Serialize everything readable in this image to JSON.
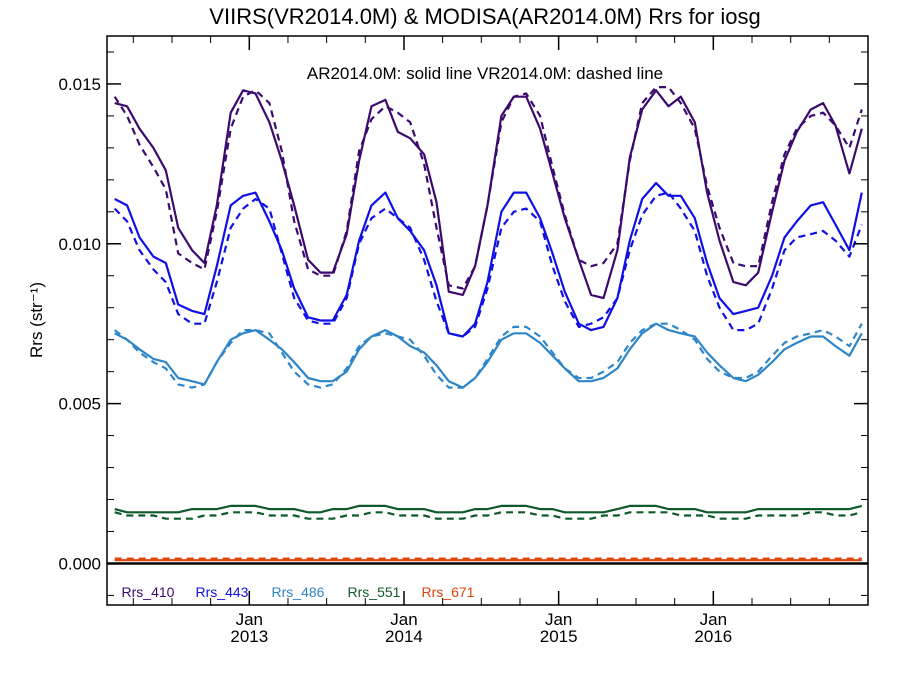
{
  "chart_data": {
    "type": "line",
    "title": "VIIRS(VR2014.0M) & MODISA(AR2014.0M)  Rrs for iosg",
    "ylabel": "Rrs (str⁻¹)",
    "xlabel": "",
    "annotation": "AR2014.0M: solid line   VR2014.0M: dashed line",
    "ylim": [
      -0.0013,
      0.0165
    ],
    "xlim": [
      2012.08,
      2017.0
    ],
    "yticks": [
      0.0,
      0.005,
      0.01,
      0.015
    ],
    "ytick_labels": [
      "0.000",
      "0.005",
      "0.010",
      "0.015"
    ],
    "xticks": [
      2013.0,
      2014.0,
      2015.0,
      2016.0
    ],
    "xtick_labels_top": [
      "Jan",
      "Jan",
      "Jan",
      "Jan"
    ],
    "xtick_labels_bottom": [
      "2013",
      "2014",
      "2015",
      "2016"
    ],
    "grid": false,
    "legend_position": "bottom-left",
    "x": [
      2012.13,
      2012.21,
      2012.29,
      2012.38,
      2012.46,
      2012.54,
      2012.63,
      2012.71,
      2012.79,
      2012.88,
      2012.96,
      2013.04,
      2013.13,
      2013.21,
      2013.29,
      2013.38,
      2013.46,
      2013.54,
      2013.63,
      2013.71,
      2013.79,
      2013.88,
      2013.96,
      2014.04,
      2014.13,
      2014.21,
      2014.29,
      2014.38,
      2014.46,
      2014.54,
      2014.63,
      2014.71,
      2014.79,
      2014.88,
      2014.96,
      2015.04,
      2015.13,
      2015.21,
      2015.29,
      2015.38,
      2015.46,
      2015.54,
      2015.63,
      2015.71,
      2015.79,
      2015.88,
      2015.96,
      2016.04,
      2016.13,
      2016.21,
      2016.29,
      2016.38,
      2016.46,
      2016.54,
      2016.63,
      2016.71,
      2016.79,
      2016.88,
      2016.96
    ],
    "series": [
      {
        "name": "Rrs_410",
        "sensor": "AR2014.0M",
        "style": "solid",
        "color": "#3c0a6e",
        "values": [
          0.0144,
          0.0143,
          0.0136,
          0.013,
          0.0123,
          0.0105,
          0.0098,
          0.0094,
          0.0112,
          0.0141,
          0.0148,
          0.0147,
          0.0138,
          0.0126,
          0.0112,
          0.0095,
          0.0091,
          0.0091,
          0.0103,
          0.0126,
          0.0143,
          0.0145,
          0.0135,
          0.0133,
          0.0128,
          0.0113,
          0.0085,
          0.0084,
          0.0093,
          0.0112,
          0.014,
          0.0146,
          0.0146,
          0.0136,
          0.0122,
          0.0108,
          0.0095,
          0.0084,
          0.0083,
          0.0098,
          0.0127,
          0.0142,
          0.0148,
          0.0143,
          0.0146,
          0.0138,
          0.0116,
          0.0101,
          0.0088,
          0.0087,
          0.0091,
          0.011,
          0.0126,
          0.0135,
          0.0142,
          0.0144,
          0.0137,
          0.0122,
          0.0136
        ]
      },
      {
        "name": "Rrs_410",
        "sensor": "VR2014.0M",
        "style": "dashed",
        "color": "#3c0a6e",
        "values": [
          0.0146,
          0.014,
          0.0131,
          0.0124,
          0.0117,
          0.0097,
          0.0094,
          0.0092,
          0.011,
          0.0136,
          0.0146,
          0.0148,
          0.0144,
          0.0129,
          0.0107,
          0.0092,
          0.009,
          0.009,
          0.0104,
          0.0129,
          0.0139,
          0.0143,
          0.0141,
          0.0138,
          0.0125,
          0.0105,
          0.0087,
          0.0086,
          0.0093,
          0.0112,
          0.0138,
          0.0146,
          0.0147,
          0.014,
          0.0124,
          0.0109,
          0.0095,
          0.0093,
          0.0094,
          0.01,
          0.0126,
          0.0144,
          0.0149,
          0.0149,
          0.0144,
          0.0136,
          0.0118,
          0.0105,
          0.0094,
          0.0093,
          0.0093,
          0.0113,
          0.0128,
          0.0136,
          0.014,
          0.0141,
          0.0137,
          0.013,
          0.0142
        ]
      },
      {
        "name": "Rrs_443",
        "sensor": "AR2014.0M",
        "style": "solid",
        "color": "#1010e6",
        "values": [
          0.0114,
          0.0112,
          0.0102,
          0.0096,
          0.0094,
          0.0081,
          0.0079,
          0.0078,
          0.0093,
          0.0112,
          0.0115,
          0.0116,
          0.0107,
          0.0098,
          0.0086,
          0.0077,
          0.0076,
          0.0076,
          0.0084,
          0.0101,
          0.0112,
          0.0116,
          0.0108,
          0.0104,
          0.0098,
          0.0087,
          0.0072,
          0.0071,
          0.0075,
          0.0088,
          0.011,
          0.0116,
          0.0116,
          0.0108,
          0.0097,
          0.0085,
          0.0075,
          0.0073,
          0.0074,
          0.0083,
          0.0101,
          0.0114,
          0.0119,
          0.0115,
          0.0115,
          0.0108,
          0.0094,
          0.0083,
          0.0078,
          0.0079,
          0.008,
          0.009,
          0.0102,
          0.0107,
          0.0112,
          0.0113,
          0.0106,
          0.0098,
          0.0116
        ]
      },
      {
        "name": "Rrs_443",
        "sensor": "VR2014.0M",
        "style": "dashed",
        "color": "#1010e6",
        "values": [
          0.0111,
          0.0107,
          0.0098,
          0.0092,
          0.0088,
          0.0078,
          0.0075,
          0.0075,
          0.0088,
          0.0105,
          0.0111,
          0.0114,
          0.0111,
          0.0097,
          0.0083,
          0.0076,
          0.0075,
          0.0075,
          0.0083,
          0.01,
          0.0108,
          0.0111,
          0.0108,
          0.0105,
          0.0095,
          0.0082,
          0.0072,
          0.0071,
          0.0074,
          0.0086,
          0.0105,
          0.011,
          0.0111,
          0.0107,
          0.0093,
          0.0082,
          0.0074,
          0.0075,
          0.0077,
          0.0083,
          0.0098,
          0.0109,
          0.0115,
          0.0116,
          0.0111,
          0.0104,
          0.009,
          0.008,
          0.0073,
          0.0073,
          0.0075,
          0.0086,
          0.0098,
          0.0102,
          0.0103,
          0.0104,
          0.0101,
          0.0096,
          0.0106
        ]
      },
      {
        "name": "Rrs_486",
        "sensor": "AR2014.0M",
        "style": "solid",
        "color": "#2e86c8",
        "values": [
          0.0072,
          0.007,
          0.0067,
          0.0064,
          0.0063,
          0.0058,
          0.0057,
          0.0056,
          0.0063,
          0.007,
          0.0072,
          0.0073,
          0.007,
          0.0067,
          0.0063,
          0.0058,
          0.0057,
          0.0057,
          0.006,
          0.0067,
          0.0071,
          0.0073,
          0.0071,
          0.0068,
          0.0066,
          0.0062,
          0.0057,
          0.0055,
          0.0058,
          0.0063,
          0.007,
          0.0072,
          0.0072,
          0.0069,
          0.0065,
          0.0061,
          0.0057,
          0.0057,
          0.0058,
          0.0061,
          0.0067,
          0.0072,
          0.0075,
          0.0073,
          0.0072,
          0.0071,
          0.0066,
          0.0062,
          0.0058,
          0.0057,
          0.0059,
          0.0063,
          0.0067,
          0.0069,
          0.0071,
          0.0071,
          0.0068,
          0.0065,
          0.0072
        ]
      },
      {
        "name": "Rrs_486",
        "sensor": "VR2014.0M",
        "style": "dashed",
        "color": "#2e86c8",
        "values": [
          0.0073,
          0.007,
          0.0066,
          0.0063,
          0.0061,
          0.0056,
          0.0055,
          0.0056,
          0.0063,
          0.0069,
          0.0073,
          0.0073,
          0.0072,
          0.0066,
          0.006,
          0.0056,
          0.0055,
          0.0056,
          0.0061,
          0.0068,
          0.0071,
          0.0072,
          0.0071,
          0.007,
          0.0065,
          0.0059,
          0.0055,
          0.0055,
          0.0058,
          0.0064,
          0.0071,
          0.0074,
          0.0074,
          0.0071,
          0.0066,
          0.0061,
          0.0058,
          0.0058,
          0.006,
          0.0063,
          0.0069,
          0.0073,
          0.0075,
          0.0075,
          0.0073,
          0.007,
          0.0064,
          0.006,
          0.0058,
          0.0058,
          0.006,
          0.0065,
          0.0069,
          0.0071,
          0.0072,
          0.0073,
          0.0071,
          0.0068,
          0.0075
        ]
      },
      {
        "name": "Rrs_551",
        "sensor": "AR2014.0M",
        "style": "solid",
        "color": "#0f5a2a",
        "values": [
          0.0017,
          0.0016,
          0.0016,
          0.0016,
          0.0016,
          0.0016,
          0.0017,
          0.0017,
          0.0017,
          0.0018,
          0.0018,
          0.0018,
          0.0017,
          0.0017,
          0.0017,
          0.0016,
          0.0016,
          0.0017,
          0.0017,
          0.0018,
          0.0018,
          0.0018,
          0.0017,
          0.0017,
          0.0017,
          0.0016,
          0.0016,
          0.0016,
          0.0017,
          0.0017,
          0.0018,
          0.0018,
          0.0018,
          0.0017,
          0.0017,
          0.0016,
          0.0016,
          0.0016,
          0.0016,
          0.0017,
          0.0018,
          0.0018,
          0.0018,
          0.0017,
          0.0017,
          0.0017,
          0.0016,
          0.0016,
          0.0016,
          0.0016,
          0.0017,
          0.0017,
          0.0017,
          0.0017,
          0.0017,
          0.0017,
          0.0017,
          0.0017,
          0.0018
        ]
      },
      {
        "name": "Rrs_551",
        "sensor": "VR2014.0M",
        "style": "dashed",
        "color": "#0f5a2a",
        "values": [
          0.0016,
          0.0015,
          0.0015,
          0.0015,
          0.0014,
          0.0014,
          0.0014,
          0.0015,
          0.0015,
          0.0016,
          0.0016,
          0.0016,
          0.0015,
          0.0015,
          0.0015,
          0.0014,
          0.0014,
          0.0014,
          0.0015,
          0.0015,
          0.0016,
          0.0016,
          0.0015,
          0.0015,
          0.0015,
          0.0014,
          0.0014,
          0.0014,
          0.0015,
          0.0015,
          0.0016,
          0.0016,
          0.0016,
          0.0015,
          0.0015,
          0.0014,
          0.0014,
          0.0014,
          0.0015,
          0.0015,
          0.0016,
          0.0016,
          0.0016,
          0.0016,
          0.0015,
          0.0015,
          0.0015,
          0.0014,
          0.0014,
          0.0014,
          0.0015,
          0.0015,
          0.0015,
          0.0015,
          0.0016,
          0.0016,
          0.0015,
          0.0015,
          0.0016
        ]
      },
      {
        "name": "Rrs_671",
        "sensor": "AR2014.0M",
        "style": "solid",
        "color": "#e0450a",
        "values": [
          0.0001,
          0.0001,
          0.0001,
          0.0001,
          0.0001,
          0.0001,
          0.0001,
          0.0001,
          0.0001,
          0.0001,
          0.0001,
          0.0001,
          0.0001,
          0.0001,
          0.0001,
          0.0001,
          0.0001,
          0.0001,
          0.0001,
          0.0001,
          0.0001,
          0.0001,
          0.0001,
          0.0001,
          0.0001,
          0.0001,
          0.0001,
          0.0001,
          0.0001,
          0.0001,
          0.0001,
          0.0001,
          0.0001,
          0.0001,
          0.0001,
          0.0001,
          0.0001,
          0.0001,
          0.0001,
          0.0001,
          0.0001,
          0.0001,
          0.0001,
          0.0001,
          0.0001,
          0.0001,
          0.0001,
          0.0001,
          0.0001,
          0.0001,
          0.0001,
          0.0001,
          0.0001,
          0.0001,
          0.0001,
          0.0001,
          0.0001,
          0.0001,
          0.0001
        ]
      },
      {
        "name": "Rrs_671",
        "sensor": "VR2014.0M",
        "style": "dashed",
        "color": "#e0450a",
        "values": [
          0.00015,
          0.00015,
          0.00015,
          0.00015,
          0.00015,
          0.00015,
          0.00015,
          0.00015,
          0.00015,
          0.00015,
          0.00015,
          0.00015,
          0.00015,
          0.00015,
          0.00015,
          0.00015,
          0.00015,
          0.00015,
          0.00015,
          0.00015,
          0.00015,
          0.00015,
          0.00015,
          0.00015,
          0.00015,
          0.00015,
          0.00015,
          0.00015,
          0.00015,
          0.00015,
          0.00015,
          0.00015,
          0.00015,
          0.00015,
          0.00015,
          0.00015,
          0.00015,
          0.00015,
          0.00015,
          0.00015,
          0.00015,
          0.00015,
          0.00015,
          0.00015,
          0.00015,
          0.00015,
          0.00015,
          0.00015,
          0.00015,
          0.00015,
          0.00015,
          0.00015,
          0.00015,
          0.00015,
          0.00015,
          0.00015,
          0.00015,
          0.00015,
          0.00015
        ]
      }
    ],
    "zero_line": 0.0,
    "legend": [
      {
        "label": "Rrs_410",
        "color": "#3c0a6e"
      },
      {
        "label": "Rrs_443",
        "color": "#1010e6"
      },
      {
        "label": "Rrs_486",
        "color": "#2e86c8"
      },
      {
        "label": "Rrs_551",
        "color": "#0f5a2a"
      },
      {
        "label": "Rrs_671",
        "color": "#e0450a"
      }
    ]
  }
}
